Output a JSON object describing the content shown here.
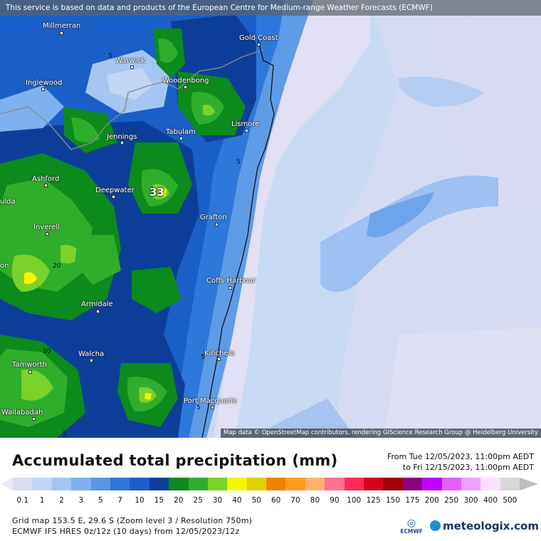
{
  "banner": "This service is based on data and products of the European Centre for Medium-range Weather Forecasts (ECMWF)",
  "attribution": "Map data © OpenStreetMap contributors, rendering GIScience Research Group @ Heidelberg University",
  "cities": [
    {
      "id": "millmerran",
      "name": "Millmerran"
    },
    {
      "id": "gold-coast",
      "name": "Gold Coast"
    },
    {
      "id": "warwick",
      "name": "Warwick"
    },
    {
      "id": "inglewood",
      "name": "Inglewood"
    },
    {
      "id": "woodenbong",
      "name": "Woodenbong"
    },
    {
      "id": "lismore",
      "name": "Lismore"
    },
    {
      "id": "tabulam",
      "name": "Tabulam"
    },
    {
      "id": "jennings",
      "name": "Jennings"
    },
    {
      "id": "ashford",
      "name": "Ashford"
    },
    {
      "id": "deepwater",
      "name": "Deepwater"
    },
    {
      "id": "grafton",
      "name": "Grafton"
    },
    {
      "id": "inverell",
      "name": "Inverell"
    },
    {
      "id": "coffs-harbour",
      "name": "Coffs Harbour"
    },
    {
      "id": "armidale",
      "name": "Armidale"
    },
    {
      "id": "kinchela",
      "name": "Kinchela"
    },
    {
      "id": "walcha",
      "name": "Walcha"
    },
    {
      "id": "tamworth",
      "name": "Tamworth"
    },
    {
      "id": "port-macquarie",
      "name": "Port Macquarie"
    },
    {
      "id": "wallabadah",
      "name": "Wallabadah"
    },
    {
      "id": "ulda-partial",
      "name": "ulda"
    },
    {
      "id": "on-partial",
      "name": "on"
    }
  ],
  "contour_labels": [
    "5",
    "5",
    "20",
    "20",
    "5",
    "5",
    "5"
  ],
  "peak_value": "33",
  "legend": {
    "title": "Accumulated total precipitation (mm)",
    "from": "From Tue 12/05/2023, 11:00pm AEDT",
    "to": "to Fri 12/15/2023, 11:00pm AEDT",
    "ticks": [
      "0.1",
      "1",
      "2",
      "3",
      "5",
      "7",
      "10",
      "15",
      "20",
      "25",
      "30",
      "40",
      "50",
      "60",
      "70",
      "80",
      "90",
      "100",
      "125",
      "150",
      "175",
      "200",
      "250",
      "300",
      "400",
      "500"
    ],
    "colors": [
      "#dcdcf0",
      "#c2d6f5",
      "#a5c6f3",
      "#7fb0ef",
      "#5596e6",
      "#2f78db",
      "#1a5fc8",
      "#0d3f9a",
      "#0c8a1c",
      "#2fae2c",
      "#7ad22a",
      "#f6f600",
      "#e0d000",
      "#f08000",
      "#ff9a20",
      "#ffb070",
      "#ff7090",
      "#ff2a5a",
      "#d4001c",
      "#a0000c",
      "#8a0080",
      "#c000ff",
      "#e060ff",
      "#f0a0ff",
      "#fae0ff",
      "#d8d8d8"
    ],
    "arrow_left_color": "#e9e9f2",
    "arrow_right_color": "#bdbdbd"
  },
  "info": {
    "line1": "Grid map 153.5 E, 29.6 S (Zoom level 3 / Resolution 750m)",
    "line2": "ECMWF IFS HRES 0z/12z (10 days)  from  12/05/2023/12z"
  },
  "logos": {
    "ecmwf": "ECMWF",
    "meteologix": "meteologix.com"
  }
}
